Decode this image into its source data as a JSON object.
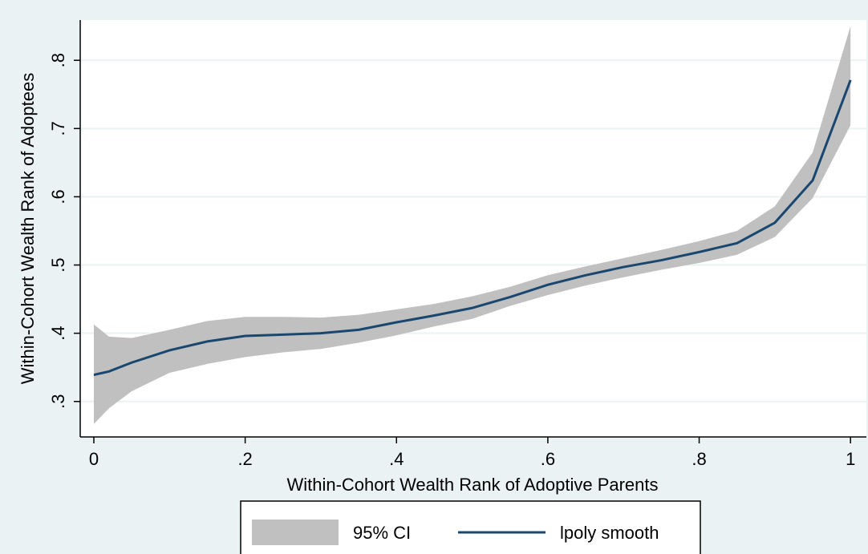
{
  "chart_data": {
    "type": "line",
    "x_label": "Within-Cohort Wealth Rank of Adoptive Parents",
    "y_label": "Within-Cohort Wealth Rank of Adoptees",
    "x": [
      0,
      0.02,
      0.05,
      0.1,
      0.15,
      0.2,
      0.25,
      0.3,
      0.35,
      0.4,
      0.45,
      0.5,
      0.55,
      0.6,
      0.65,
      0.7,
      0.75,
      0.8,
      0.85,
      0.9,
      0.95,
      1
    ],
    "series": [
      {
        "name": "95% CI",
        "type": "band",
        "color": "#c0c0c0",
        "lower": [
          0.267,
          0.29,
          0.315,
          0.342,
          0.355,
          0.365,
          0.372,
          0.377,
          0.386,
          0.397,
          0.41,
          0.421,
          0.44,
          0.456,
          0.47,
          0.482,
          0.493,
          0.503,
          0.515,
          0.541,
          0.598,
          0.705
        ],
        "upper": [
          0.413,
          0.395,
          0.393,
          0.405,
          0.418,
          0.424,
          0.424,
          0.423,
          0.427,
          0.435,
          0.443,
          0.454,
          0.468,
          0.485,
          0.498,
          0.51,
          0.522,
          0.535,
          0.55,
          0.586,
          0.665,
          0.85
        ]
      },
      {
        "name": "lpoly smooth",
        "type": "line",
        "color": "#1a476f",
        "values": [
          0.339,
          0.344,
          0.357,
          0.375,
          0.388,
          0.396,
          0.398,
          0.4,
          0.405,
          0.416,
          0.426,
          0.437,
          0.453,
          0.471,
          0.485,
          0.497,
          0.507,
          0.519,
          0.532,
          0.562,
          0.624,
          0.771
        ]
      }
    ],
    "xlim": [
      -0.018,
      1.021
    ],
    "ylim": [
      0.248,
      0.859
    ],
    "xticks": [
      0,
      {
        "value": 0.2,
        "label": ".2"
      },
      {
        "value": 0.4,
        "label": ".4"
      },
      {
        "value": 0.6,
        "label": ".6"
      },
      {
        "value": 0.8,
        "label": ".8"
      },
      1
    ],
    "yticks": [
      {
        "value": 0.3,
        "label": ".3"
      },
      {
        "value": 0.4,
        "label": ".4"
      },
      {
        "value": 0.5,
        "label": ".5"
      },
      {
        "value": 0.6,
        "label": ".6"
      },
      {
        "value": 0.7,
        "label": ".7"
      },
      {
        "value": 0.8,
        "label": ".8"
      }
    ],
    "grid": true
  }
}
